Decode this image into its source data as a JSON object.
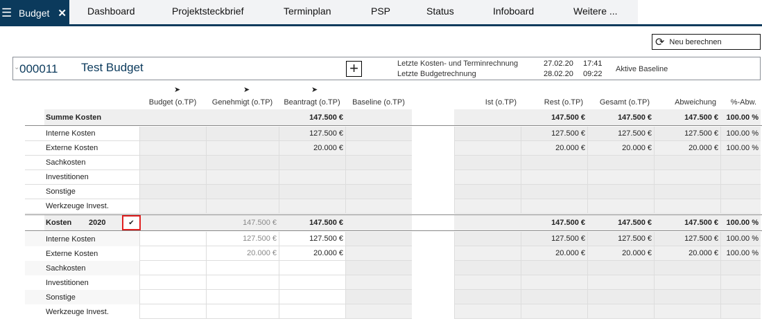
{
  "tabs": {
    "active": "Budget",
    "items": [
      "Dashboard",
      "Projektsteckbrief",
      "Terminplan",
      "PSP",
      "Status",
      "Infoboard",
      "Weitere ..."
    ]
  },
  "toolbar": {
    "recalc_label": "Neu berechnen"
  },
  "project": {
    "id": "000011",
    "name": "Test Budget",
    "calc1_label": "Letzte Kosten- und Terminrechnung",
    "calc1_date": "27.02.20",
    "calc1_time": "17:41",
    "calc2_label": "Letzte Budgetrechnung",
    "calc2_date": "28.02.20",
    "calc2_time": "09:22",
    "baseline_label": "Aktive Baseline"
  },
  "columns": [
    "Budget (o.TP)",
    "Genehmigt (o.TP)",
    "Beantragt (o.TP)",
    "Baseline (o.TP)",
    "Ist (o.TP)",
    "Rest (o.TP)",
    "Gesamt (o.TP)",
    "Abweichung",
    "%-Abw."
  ],
  "sections": [
    {
      "label": "Summe Kosten",
      "year": "",
      "checked": false,
      "total": [
        "",
        "",
        "147.500 €",
        "",
        "",
        "147.500 €",
        "147.500 €",
        "147.500 €",
        "100.00 %"
      ],
      "rows": [
        {
          "label": "Interne Kosten",
          "values": [
            "",
            "",
            "127.500 €",
            "",
            "",
            "127.500 €",
            "127.500 €",
            "127.500 €",
            "100.00 %"
          ]
        },
        {
          "label": "Externe Kosten",
          "values": [
            "",
            "",
            "20.000 €",
            "",
            "",
            "20.000 €",
            "20.000 €",
            "20.000 €",
            "100.00 %"
          ]
        },
        {
          "label": "Sachkosten",
          "values": [
            "",
            "",
            "",
            "",
            "",
            "",
            "",
            "",
            ""
          ]
        },
        {
          "label": "Investitionen",
          "values": [
            "",
            "",
            "",
            "",
            "",
            "",
            "",
            "",
            ""
          ]
        },
        {
          "label": "Sonstige",
          "values": [
            "",
            "",
            "",
            "",
            "",
            "",
            "",
            "",
            ""
          ]
        },
        {
          "label": "Werkzeuge Invest.",
          "values": [
            "",
            "",
            "",
            "",
            "",
            "",
            "",
            "",
            ""
          ]
        }
      ]
    },
    {
      "label": "Kosten",
      "year": "2020",
      "checked": true,
      "total": [
        "",
        "147.500 €",
        "147.500 €",
        "",
        "",
        "147.500 €",
        "147.500 €",
        "147.500 €",
        "100.00 %"
      ],
      "rows": [
        {
          "label": "Interne Kosten",
          "values": [
            "",
            "127.500 €",
            "127.500 €",
            "",
            "",
            "127.500 €",
            "127.500 €",
            "127.500 €",
            "100.00 %"
          ]
        },
        {
          "label": "Externe Kosten",
          "values": [
            "",
            "20.000 €",
            "20.000 €",
            "",
            "",
            "20.000 €",
            "20.000 €",
            "20.000 €",
            "100.00 %"
          ]
        },
        {
          "label": "Sachkosten",
          "values": [
            "",
            "",
            "",
            "",
            "",
            "",
            "",
            "",
            ""
          ]
        },
        {
          "label": "Investitionen",
          "values": [
            "",
            "",
            "",
            "",
            "",
            "",
            "",
            "",
            ""
          ]
        },
        {
          "label": "Sonstige",
          "values": [
            "",
            "",
            "",
            "",
            "",
            "",
            "",
            "",
            ""
          ]
        },
        {
          "label": "Werkzeuge Invest.",
          "values": [
            "",
            "",
            "",
            "",
            "",
            "",
            "",
            "",
            ""
          ]
        }
      ]
    }
  ],
  "colors": {
    "brand": "#0b3a5c",
    "cell_gray": "#efefef",
    "checkbox_border": "#e02020"
  }
}
